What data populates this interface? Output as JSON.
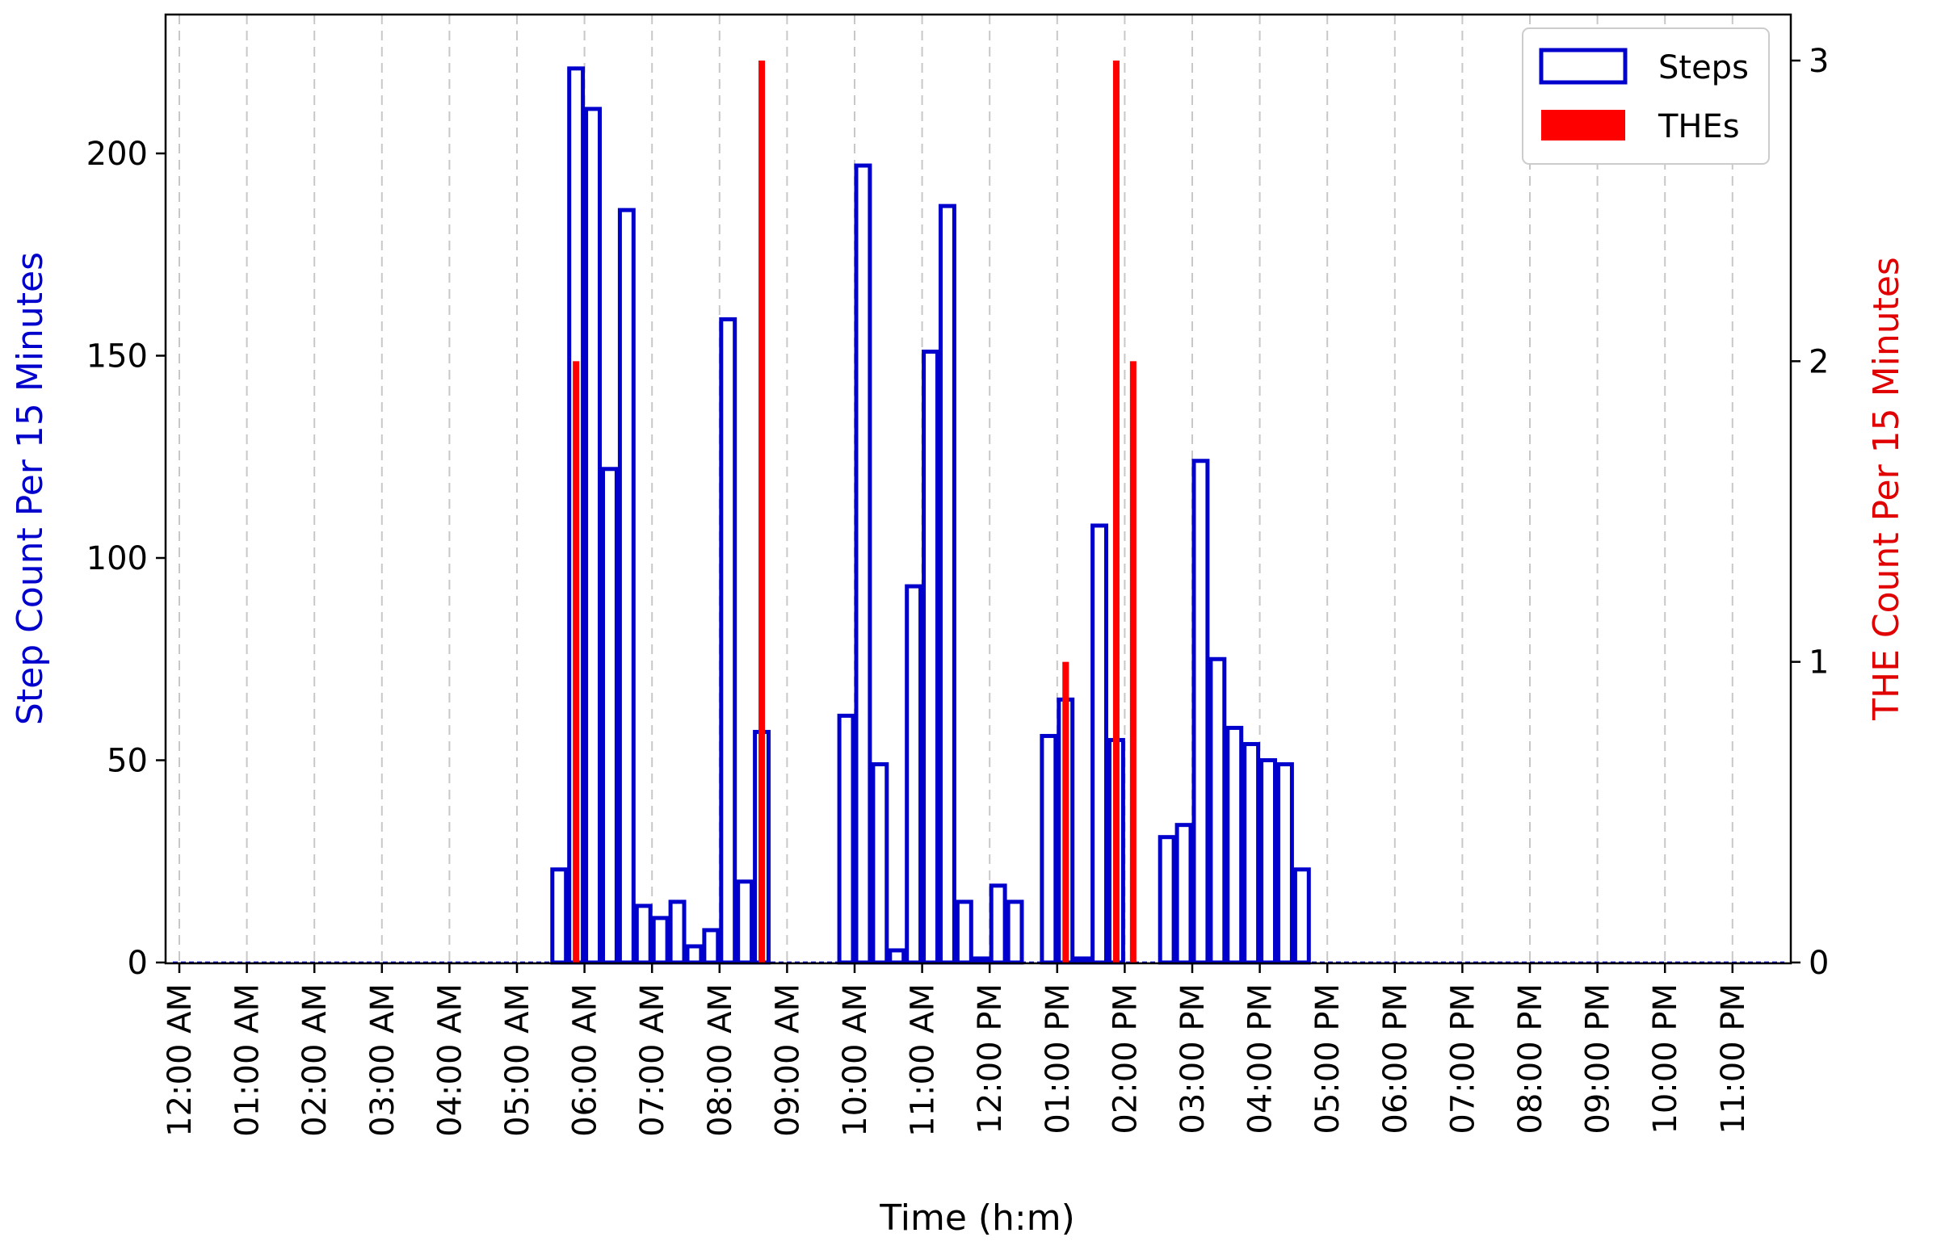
{
  "chart_data": {
    "type": "bar",
    "xlabel": "Time (h:m)",
    "ylabel_left": "Step Count Per 15 Minutes",
    "ylabel_right": "THE Count Per 15 Minutes",
    "ylim_left": [
      0,
      235
    ],
    "ylim_right": [
      0,
      3.15
    ],
    "left_ticks": [
      "0",
      "50",
      "100",
      "150",
      "200"
    ],
    "right_ticks": [
      "0",
      "1",
      "2",
      "3"
    ],
    "x_tick_labels": [
      "12:00 AM",
      "01:00 AM",
      "02:00 AM",
      "03:00 AM",
      "04:00 AM",
      "05:00 AM",
      "06:00 AM",
      "07:00 AM",
      "08:00 AM",
      "09:00 AM",
      "10:00 AM",
      "11:00 AM",
      "12:00 PM",
      "01:00 PM",
      "02:00 PM",
      "03:00 PM",
      "04:00 PM",
      "05:00 PM",
      "06:00 PM",
      "07:00 PM",
      "08:00 PM",
      "09:00 PM",
      "10:00 PM",
      "11:00 PM"
    ],
    "grid": "vertical-dashed",
    "legend": "top-right",
    "colors": {
      "steps": "#0000cc",
      "thes": "#ff0000"
    },
    "series": [
      {
        "name": "Steps",
        "style": "outline",
        "values": [
          0,
          0,
          0,
          0,
          0,
          0,
          0,
          0,
          0,
          0,
          0,
          0,
          0,
          0,
          0,
          0,
          0,
          0,
          0,
          0,
          0,
          0,
          23,
          221,
          211,
          122,
          186,
          14,
          11,
          15,
          4,
          8,
          159,
          20,
          57,
          0,
          0,
          0,
          0,
          61,
          197,
          49,
          3,
          93,
          151,
          187,
          15,
          1,
          19,
          15,
          0,
          56,
          65,
          1,
          108,
          55,
          0,
          0,
          31,
          34,
          124,
          75,
          58,
          54,
          50,
          49,
          23,
          0,
          0,
          0,
          0,
          0,
          0,
          0,
          0,
          0,
          0,
          0,
          0,
          0,
          0,
          0,
          0,
          0,
          0,
          0,
          0,
          0,
          0,
          0,
          0,
          0,
          0,
          0,
          0,
          0
        ]
      },
      {
        "name": "THEs",
        "style": "filled",
        "points": [
          {
            "slot": 23,
            "value": 2
          },
          {
            "slot": 34,
            "value": 3
          },
          {
            "slot": 52,
            "value": 1
          },
          {
            "slot": 55,
            "value": 3
          },
          {
            "slot": 56,
            "value": 2
          }
        ]
      }
    ]
  }
}
